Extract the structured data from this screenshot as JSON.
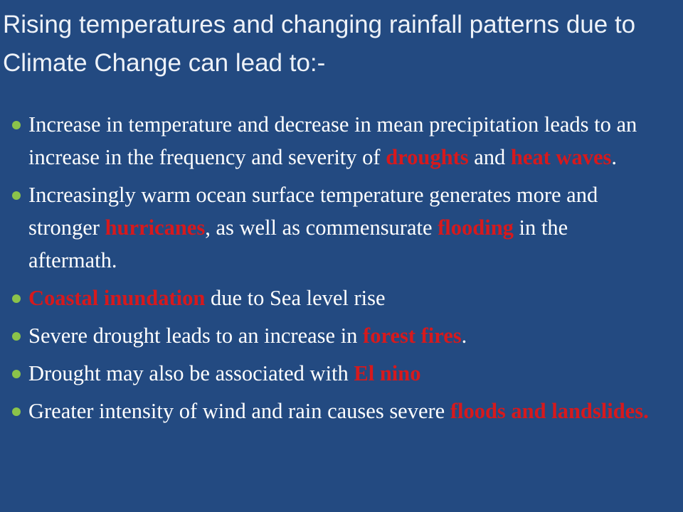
{
  "title": "Rising temperatures and changing rainfall patterns due to Climate Change can lead to:-",
  "bullets": [
    [
      {
        "text": "Increase in temperature and decrease in mean precipitation leads to an increase in the frequency and severity of "
      },
      {
        "text": "droughts",
        "color": "#d7191c"
      },
      {
        "text": " and "
      },
      {
        "text": "heat waves",
        "color": "#d7191c"
      },
      {
        "text": "."
      }
    ],
    [
      {
        "text": "Increasingly warm ocean surface temperature generates more and stronger "
      },
      {
        "text": "hurricanes",
        "color": "#d7191c"
      },
      {
        "text": ", as well as commensurate "
      },
      {
        "text": "flooding",
        "color": "#d7191c"
      },
      {
        "text": " in the aftermath."
      }
    ],
    [
      {
        "text": "Coastal inundation",
        "color": "#d7191c"
      },
      {
        "text": " due to Sea level rise"
      }
    ],
    [
      {
        "text": "Severe drought leads to an increase in "
      },
      {
        "text": "forest fires",
        "color": "#d7191c"
      },
      {
        "text": "."
      }
    ],
    [
      {
        "text": "Drought may also be associated with "
      },
      {
        "text": "El nino",
        "color": "#d7191c"
      }
    ],
    [
      {
        "text": "Greater intensity of wind and rain causes severe "
      },
      {
        "text": "floods and landslides.",
        "color": "#d7191c"
      }
    ]
  ]
}
